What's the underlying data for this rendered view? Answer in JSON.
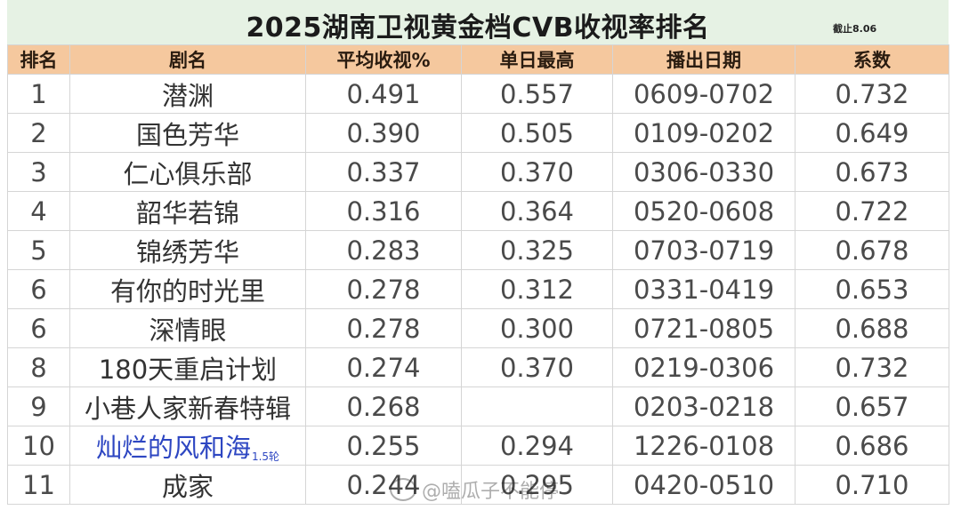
{
  "title": "2025湖南卫视黄金档CVB收视率排名",
  "note": "截止8.06",
  "headers": [
    "排名",
    "剧名",
    "平均收视%",
    "单日最高",
    "播出日期",
    "系数"
  ],
  "rows": [
    {
      "rank": "1",
      "name": "潜渊",
      "suffix": "",
      "avg": "0.491",
      "peak": "0.557",
      "dates": "0609-0702",
      "coef": "0.732"
    },
    {
      "rank": "2",
      "name": "国色芳华",
      "suffix": "",
      "avg": "0.390",
      "peak": "0.505",
      "dates": "0109-0202",
      "coef": "0.649"
    },
    {
      "rank": "3",
      "name": "仁心俱乐部",
      "suffix": "",
      "avg": "0.337",
      "peak": "0.370",
      "dates": "0306-0330",
      "coef": "0.673"
    },
    {
      "rank": "4",
      "name": "韶华若锦",
      "suffix": "",
      "avg": "0.316",
      "peak": "0.364",
      "dates": "0520-0608",
      "coef": "0.722"
    },
    {
      "rank": "5",
      "name": "锦绣芳华",
      "suffix": "",
      "avg": "0.283",
      "peak": "0.325",
      "dates": "0703-0719",
      "coef": "0.678"
    },
    {
      "rank": "6",
      "name": "有你的时光里",
      "suffix": "",
      "avg": "0.278",
      "peak": "0.312",
      "dates": "0331-0419",
      "coef": "0.653"
    },
    {
      "rank": "6",
      "name": "深情眼",
      "suffix": "",
      "avg": "0.278",
      "peak": "0.300",
      "dates": "0721-0805",
      "coef": "0.688"
    },
    {
      "rank": "8",
      "name": "180天重启计划",
      "suffix": "",
      "avg": "0.274",
      "peak": "0.370",
      "dates": "0219-0306",
      "coef": "0.732"
    },
    {
      "rank": "9",
      "name": "小巷人家新春特辑",
      "suffix": "",
      "avg": "0.268",
      "peak": "",
      "dates": "0203-0218",
      "coef": "0.657"
    },
    {
      "rank": "10",
      "name": "灿烂的风和海",
      "suffix": "1.5轮",
      "avg": "0.255",
      "peak": "0.294",
      "dates": "1226-0108",
      "coef": "0.686"
    },
    {
      "rank": "11",
      "name": "成家",
      "suffix": "",
      "avg": "0.244",
      "peak": "0.295",
      "dates": "0420-0510",
      "coef": "0.710"
    }
  ],
  "watermark": "@嗑瓜子不能停",
  "colors": {
    "header_bg": "#f5c89e",
    "title_bg": "#e6f2e4",
    "highlight_text": "#2d46c2"
  }
}
